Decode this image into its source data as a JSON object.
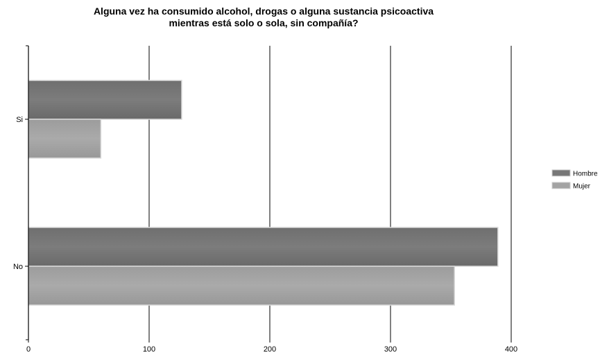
{
  "chart_data": {
    "type": "bar",
    "orientation": "horizontal",
    "title_lines": [
      "Alguna vez ha consumido alcohol, drogas o alguna sustancia psicoactiva",
      "mientras está solo o sola, sin compañía?"
    ],
    "categories": [
      "Si",
      "No"
    ],
    "series": [
      {
        "name": "Hombre",
        "values": [
          127,
          389
        ],
        "color": "#777777"
      },
      {
        "name": "Mujer",
        "values": [
          60,
          353
        ],
        "color": "#a3a3a3"
      }
    ],
    "xlim": [
      0,
      400
    ],
    "x_ticks": [
      0,
      100,
      200,
      300,
      400
    ],
    "grid": true,
    "legend_position": "right"
  }
}
